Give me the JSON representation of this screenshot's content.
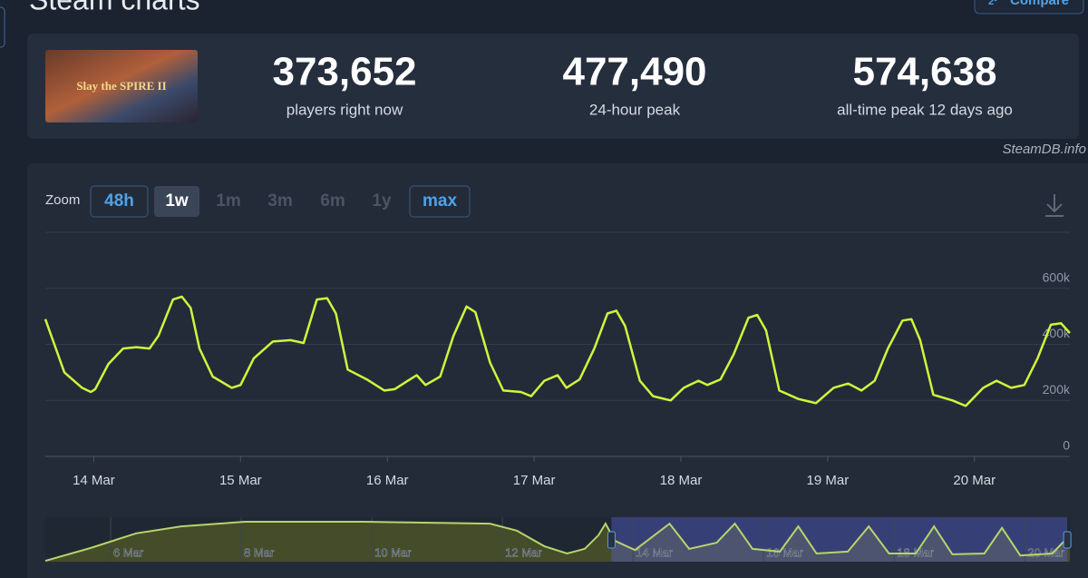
{
  "header": {
    "title": "Steam charts",
    "compare_icon": "2³",
    "compare": "Compare"
  },
  "game": {
    "image_text": "Slay the SPIRE II"
  },
  "stats": [
    {
      "value": "373,652",
      "label": "players right now"
    },
    {
      "value": "477,490",
      "label": "24-hour peak"
    },
    {
      "value": "574,638",
      "label": "all-time peak 12 days ago"
    }
  ],
  "source": "SteamDB.info",
  "zoom": {
    "label": "Zoom",
    "options": [
      "48h",
      "1w",
      "1m",
      "3m",
      "6m",
      "1y",
      "max"
    ],
    "active": 1,
    "available": [
      0,
      1,
      6
    ]
  },
  "chart_data": [
    {
      "type": "line",
      "color": "#d2f53c",
      "x": [
        13.67,
        13.8,
        13.92,
        13.98,
        14.01,
        14.1,
        14.2,
        14.29,
        14.38,
        14.44,
        14.54,
        14.6,
        14.66,
        14.72,
        14.81,
        14.94,
        15.0,
        15.09,
        15.22,
        15.34,
        15.43,
        15.52,
        15.59,
        15.65,
        15.73,
        15.86,
        15.98,
        16.05,
        16.14,
        16.2,
        16.26,
        16.36,
        16.45,
        16.54,
        16.6,
        16.7,
        16.79,
        16.91,
        16.98,
        17.07,
        17.16,
        17.22,
        17.31,
        17.41,
        17.5,
        17.56,
        17.62,
        17.72,
        17.81,
        17.93,
        18.02,
        18.12,
        18.18,
        18.27,
        18.36,
        18.46,
        18.52,
        18.58,
        18.67,
        18.8,
        18.92,
        19.04,
        19.14,
        19.23,
        19.32,
        19.41,
        19.51,
        19.57,
        19.63,
        19.72,
        19.85,
        19.94,
        20.06,
        20.15,
        20.25,
        20.34,
        20.43,
        20.52,
        20.59,
        20.65
      ],
      "values": [
        490000,
        300000,
        245000,
        230000,
        240000,
        330000,
        385000,
        390000,
        385000,
        430000,
        560000,
        570000,
        530000,
        385000,
        285000,
        245000,
        255000,
        350000,
        410000,
        415000,
        405000,
        560000,
        565000,
        510000,
        310000,
        275000,
        235000,
        240000,
        270000,
        290000,
        255000,
        285000,
        430000,
        535000,
        515000,
        335000,
        235000,
        230000,
        215000,
        270000,
        290000,
        245000,
        275000,
        385000,
        510000,
        520000,
        465000,
        270000,
        215000,
        200000,
        245000,
        270000,
        255000,
        275000,
        365000,
        495000,
        505000,
        450000,
        235000,
        205000,
        190000,
        245000,
        260000,
        235000,
        270000,
        385000,
        485000,
        490000,
        415000,
        220000,
        200000,
        180000,
        245000,
        270000,
        245000,
        255000,
        350000,
        470000,
        475000,
        440000
      ],
      "xlim": [
        13.67,
        20.65
      ],
      "xticks": [
        {
          "value": 14,
          "label": "14 Mar"
        },
        {
          "value": 15,
          "label": "15 Mar"
        },
        {
          "value": 16,
          "label": "16 Mar"
        },
        {
          "value": 17,
          "label": "17 Mar"
        },
        {
          "value": 18,
          "label": "18 Mar"
        },
        {
          "value": 19,
          "label": "19 Mar"
        },
        {
          "value": 20,
          "label": "20 Mar"
        }
      ],
      "ylim": [
        0,
        800000
      ],
      "yticks": [
        0,
        {
          "value": 200000,
          "label": "200k"
        },
        {
          "value": 400000,
          "label": "400k"
        },
        {
          "value": 600000,
          "label": "600k"
        }
      ],
      "grid": true
    },
    {
      "type": "area",
      "color": "#b8d46a",
      "x": [
        5.0,
        5.69,
        6.39,
        7.08,
        8.06,
        9.86,
        11.81,
        12.22,
        12.64,
        12.99,
        13.26,
        13.47,
        13.58,
        13.72,
        14.03,
        14.56,
        14.86,
        15.28,
        15.56,
        15.83,
        16.25,
        16.53,
        16.81,
        17.29,
        17.61,
        17.92,
        18.33,
        18.61,
        18.89,
        19.38,
        19.65,
        19.93,
        20.42,
        20.69
      ],
      "values": [
        10000,
        175000,
        365000,
        455000,
        515000,
        515000,
        490000,
        400000,
        200000,
        105000,
        165000,
        340000,
        490000,
        270000,
        150000,
        490000,
        165000,
        245000,
        490000,
        165000,
        130000,
        455000,
        105000,
        130000,
        455000,
        105000,
        105000,
        455000,
        95000,
        105000,
        435000,
        80000,
        105000,
        340000
      ],
      "xlim": [
        5.0,
        20.69
      ],
      "xticks": [
        {
          "value": 6,
          "label": "6 Mar"
        },
        {
          "value": 8,
          "label": "8 Mar"
        },
        {
          "value": 10,
          "label": "10 Mar"
        },
        {
          "value": 12,
          "label": "12 Mar"
        },
        {
          "value": 14,
          "label": "14 Mar"
        },
        {
          "value": 16,
          "label": "16 Mar"
        },
        {
          "value": 18,
          "label": "18 Mar"
        },
        {
          "value": 20,
          "label": "20 Mar"
        }
      ],
      "ylim": [
        0,
        550000
      ]
    }
  ]
}
